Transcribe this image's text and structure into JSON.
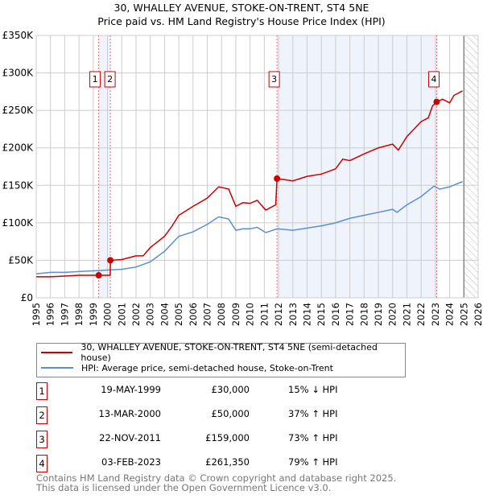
{
  "title_line1": "30, WHALLEY AVENUE, STOKE-ON-TRENT, ST4 5NE",
  "title_line2": "Price paid vs. HM Land Registry's House Price Index (HPI)",
  "chart_data": {
    "type": "line",
    "title": "30, WHALLEY AVENUE, STOKE-ON-TRENT, ST4 5NE — Price paid vs. HM Land Registry's House Price Index (HPI)",
    "xlim": [
      1995,
      2026
    ],
    "ylim": [
      0,
      350000
    ],
    "xticks": [
      "1995",
      "1996",
      "1997",
      "1998",
      "1999",
      "2000",
      "2001",
      "2002",
      "2003",
      "2004",
      "2005",
      "2006",
      "2007",
      "2008",
      "2009",
      "2010",
      "2011",
      "2012",
      "2013",
      "2014",
      "2015",
      "2016",
      "2017",
      "2018",
      "2019",
      "2020",
      "2021",
      "2022",
      "2023",
      "2024",
      "2025",
      "2026"
    ],
    "yticks": [
      {
        "v": 0,
        "label": "£0"
      },
      {
        "v": 50000,
        "label": "£50K"
      },
      {
        "v": 100000,
        "label": "£100K"
      },
      {
        "v": 150000,
        "label": "£150K"
      },
      {
        "v": 200000,
        "label": "£200K"
      },
      {
        "v": 250000,
        "label": "£250K"
      },
      {
        "v": 300000,
        "label": "£300K"
      },
      {
        "v": 350000,
        "label": "£350K"
      }
    ],
    "grid": true,
    "forecast_start": 2025,
    "series": [
      {
        "name": "30, WHALLEY AVENUE, STOKE-ON-TRENT, ST4 5NE (semi-detached house)",
        "color": "#cc0000",
        "x": [
          1995,
          1996,
          1997,
          1998,
          1999.38,
          2000.19,
          2000.2,
          2001,
          2002,
          2002.5,
          2003,
          2004,
          2004.5,
          2005,
          2006,
          2007,
          2007.8,
          2008.5,
          2009.0,
          2009.5,
          2010,
          2010.5,
          2011.1,
          2011.8,
          2011.89,
          2013,
          2014,
          2015,
          2016,
          2016.5,
          2017,
          2018,
          2019,
          2020,
          2020.4,
          2021,
          2022,
          2022.5,
          2022.8,
          2023.09,
          2023.5,
          2024,
          2024.3,
          2024.9
        ],
        "y": [
          28000,
          28000,
          29000,
          30000,
          30000,
          30000,
          50000,
          51000,
          56000,
          56000,
          67000,
          82000,
          95000,
          110000,
          122000,
          133000,
          148000,
          145000,
          122000,
          127000,
          126000,
          130000,
          117000,
          124000,
          159000,
          156000,
          162000,
          165000,
          172000,
          185000,
          183000,
          192000,
          200000,
          205000,
          197000,
          215000,
          235000,
          240000,
          256000,
          261350,
          265000,
          260000,
          270000,
          276000
        ]
      },
      {
        "name": "HPI: Average price, semi-detached house, Stoke-on-Trent",
        "color": "#5b8fd4",
        "x": [
          1995,
          1996,
          1997,
          1998,
          1999,
          2000,
          2001,
          2002,
          2003,
          2004,
          2005,
          2006,
          2007,
          2007.8,
          2008.5,
          2009.0,
          2009.5,
          2010,
          2010.5,
          2011.1,
          2011.9,
          2013,
          2014,
          2015,
          2016,
          2017,
          2018,
          2019,
          2020,
          2020.3,
          2021,
          2022,
          2022.9,
          2023.3,
          2024,
          2024.9
        ],
        "y": [
          32000,
          34000,
          34000,
          35000,
          36000,
          37000,
          38000,
          41000,
          48000,
          62000,
          82000,
          88000,
          98000,
          108000,
          105000,
          90000,
          92000,
          92000,
          94000,
          87000,
          92000,
          90000,
          93000,
          96000,
          100000,
          106000,
          110000,
          114000,
          118000,
          114000,
          124000,
          135000,
          149000,
          145000,
          148000,
          155000
        ]
      }
    ],
    "sales": [
      {
        "n": "1",
        "x": 1999.38,
        "date": "19-MAY-1999",
        "price_value": 30000,
        "price": "£30,000",
        "hpi": "15% ↓ HPI"
      },
      {
        "n": "2",
        "x": 2000.2,
        "date": "13-MAR-2000",
        "price_value": 50000,
        "price": "£50,000",
        "hpi": "37% ↑ HPI"
      },
      {
        "n": "3",
        "x": 2011.89,
        "date": "22-NOV-2011",
        "price_value": 159000,
        "price": "£159,000",
        "hpi": "73% ↑ HPI"
      },
      {
        "n": "4",
        "x": 2023.09,
        "date": "03-FEB-2023",
        "price_value": 261350,
        "price": "£261,350",
        "hpi": "79% ↑ HPI"
      }
    ]
  },
  "footer_line1": "Contains HM Land Registry data © Crown copyright and database right 2025.",
  "footer_line2": "This data is licensed under the Open Government Licence v3.0."
}
